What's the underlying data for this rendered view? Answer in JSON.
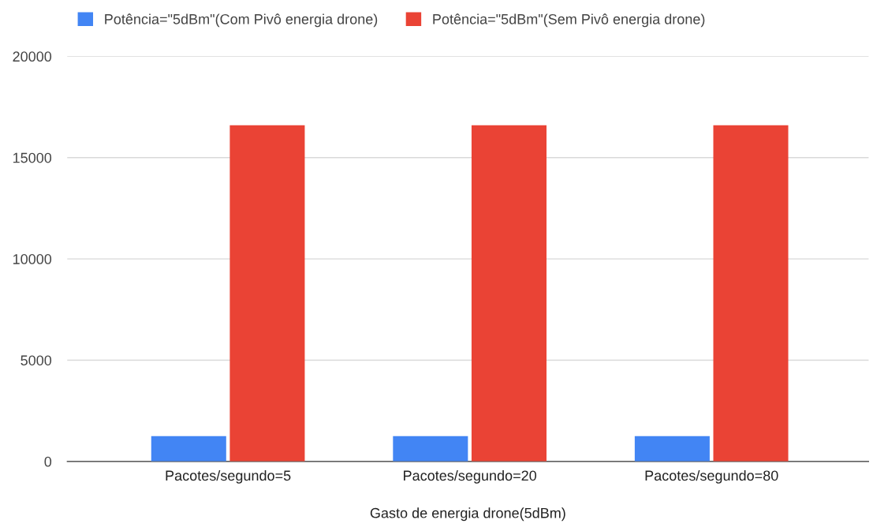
{
  "chart_data": {
    "type": "bar",
    "xlabel": "Gasto de energia drone(5dBm)",
    "categories": [
      "Pacotes/segundo=5",
      "Pacotes/segundo=20",
      "Pacotes/segundo=80"
    ],
    "series": [
      {
        "name": "Potência=\"5dBm\"(Com Pivô energia drone)",
        "color": "#4285f4",
        "values": [
          1250,
          1250,
          1250
        ]
      },
      {
        "name": "Potência=\"5dBm\"(Sem Pivô energia drone)",
        "color": "#ea4335",
        "values": [
          16600,
          16600,
          16600
        ]
      }
    ],
    "ylim": [
      0,
      20000
    ],
    "yticks": [
      0,
      5000,
      10000,
      15000,
      20000
    ],
    "grid": "y",
    "legend": "top"
  }
}
